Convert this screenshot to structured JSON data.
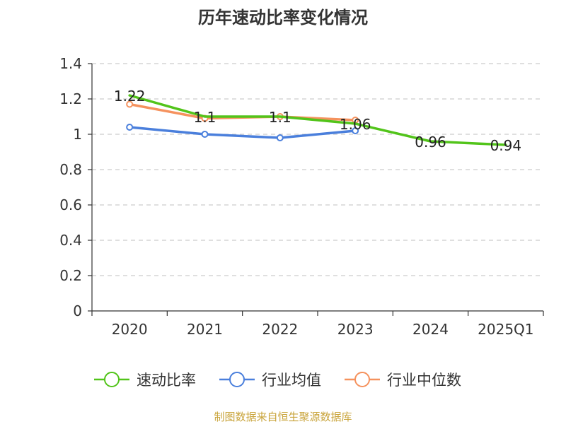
{
  "chart_data": {
    "type": "line",
    "title": "历年速动比率变化情况",
    "categories": [
      "2020",
      "2021",
      "2022",
      "2023",
      "2024",
      "2025Q1"
    ],
    "ylim": [
      0,
      1.4
    ],
    "yticks": [
      "0",
      "0.2",
      "0.4",
      "0.6",
      "0.8",
      "1",
      "1.2",
      "1.4"
    ],
    "grid": true,
    "legend_position": "bottom",
    "series": [
      {
        "name": "速动比率",
        "color": "#52c41a",
        "values": [
          1.22,
          1.1,
          1.1,
          1.06,
          0.96,
          0.94
        ],
        "labels": [
          "1.22",
          "1.1",
          "1.1",
          "1.06",
          "0.96",
          "0.94"
        ],
        "markers": false
      },
      {
        "name": "行业均值",
        "color": "#4a7fdc",
        "values": [
          1.04,
          1.0,
          0.98,
          1.02,
          null,
          null
        ],
        "markers": true
      },
      {
        "name": "行业中位数",
        "color": "#f5925e",
        "values": [
          1.17,
          1.09,
          1.1,
          1.08,
          null,
          null
        ],
        "markers": true
      }
    ],
    "source": "制图数据来自恒生聚源数据库"
  }
}
